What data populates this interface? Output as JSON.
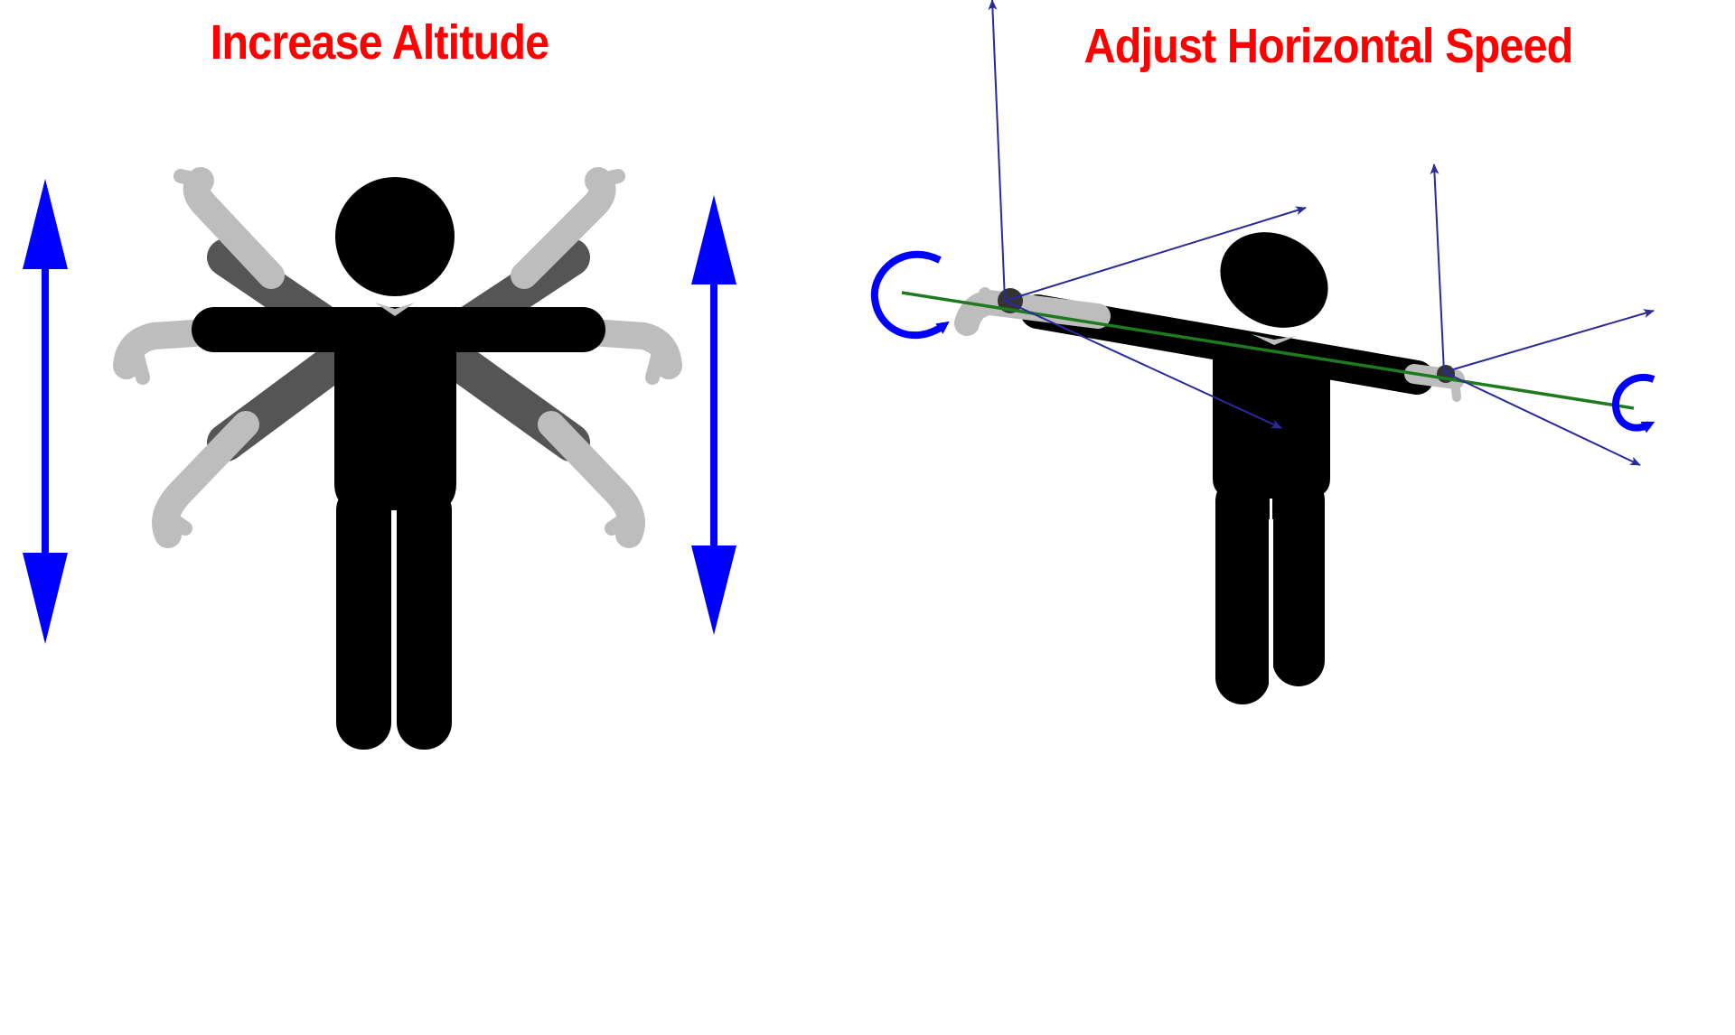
{
  "panels": [
    {
      "title": "Increase Altitude"
    },
    {
      "title": "Adjust Horizontal Speed"
    }
  ],
  "colors": {
    "title": "#ff0000",
    "arrow": "#0000ff",
    "figure": "#000000",
    "arm_ghost_dark": "#555555",
    "arm_ghost_light": "#bdbdbd",
    "axis_line": "#1f7a1f",
    "axis_vector": "#2a2a9a"
  }
}
